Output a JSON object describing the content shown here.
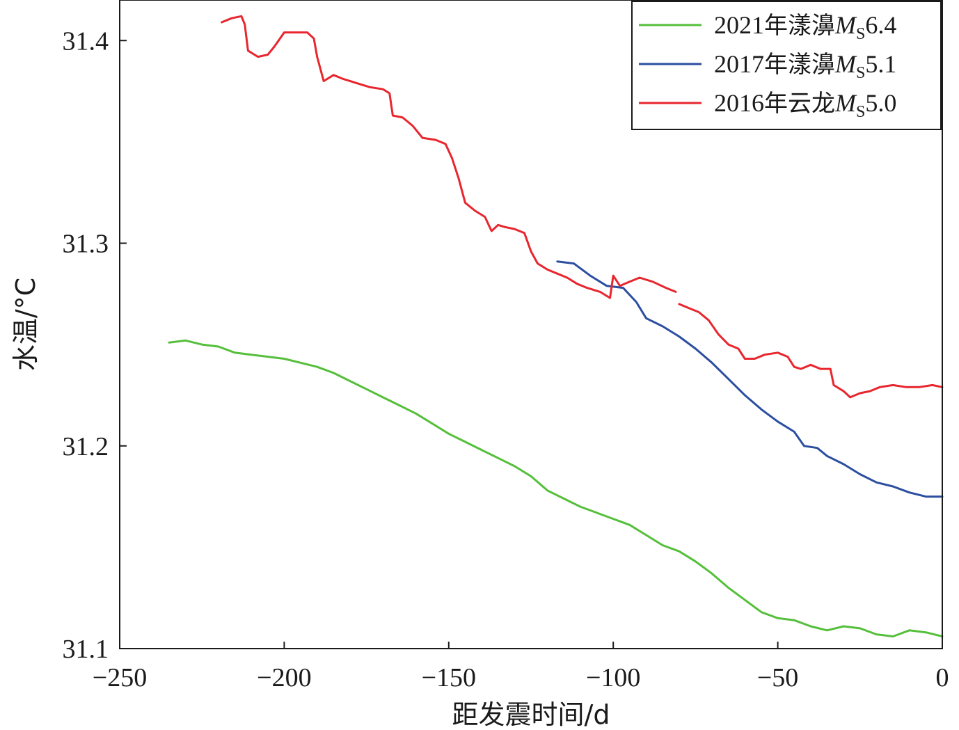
{
  "chart_data": {
    "type": "line",
    "xlabel": "距发震时间/d",
    "ylabel": "水温/°C",
    "xlim": [
      -250,
      0
    ],
    "ylim": [
      31.1,
      31.42
    ],
    "x_ticks": [
      -250,
      -200,
      -150,
      -100,
      -50,
      0
    ],
    "x_tick_labels": [
      "−250",
      "−200",
      "−150",
      "−100",
      "−50",
      "0"
    ],
    "y_ticks": [
      31.1,
      31.2,
      31.3,
      31.4
    ],
    "y_tick_labels": [
      "31.1",
      "31.2",
      "31.3",
      "31.4"
    ],
    "grid": false,
    "legend_position": "top-right",
    "series": [
      {
        "name": "2021年漾濞MS6.4",
        "legend": {
          "pre": "2021年漾濞",
          "italic": "M",
          "sub": "S",
          "post": "6.4"
        },
        "color": "#55bf3b",
        "points": [
          [
            -235,
            31.251
          ],
          [
            -230,
            31.252
          ],
          [
            -225,
            31.25
          ],
          [
            -220,
            31.249
          ],
          [
            -215,
            31.246
          ],
          [
            -210,
            31.245
          ],
          [
            -205,
            31.244
          ],
          [
            -200,
            31.243
          ],
          [
            -195,
            31.241
          ],
          [
            -190,
            31.239
          ],
          [
            -185,
            31.236
          ],
          [
            -180,
            31.232
          ],
          [
            -175,
            31.228
          ],
          [
            -170,
            31.224
          ],
          [
            -165,
            31.22
          ],
          [
            -160,
            31.216
          ],
          [
            -155,
            31.211
          ],
          [
            -150,
            31.206
          ],
          [
            -145,
            31.202
          ],
          [
            -140,
            31.198
          ],
          [
            -135,
            31.194
          ],
          [
            -130,
            31.19
          ],
          [
            -125,
            31.185
          ],
          [
            -120,
            31.178
          ],
          [
            -115,
            31.174
          ],
          [
            -110,
            31.17
          ],
          [
            -105,
            31.167
          ],
          [
            -100,
            31.164
          ],
          [
            -95,
            31.161
          ],
          [
            -90,
            31.156
          ],
          [
            -85,
            31.151
          ],
          [
            -80,
            31.148
          ],
          [
            -75,
            31.143
          ],
          [
            -70,
            31.137
          ],
          [
            -65,
            31.13
          ],
          [
            -60,
            31.124
          ],
          [
            -55,
            31.118
          ],
          [
            -50,
            31.115
          ],
          [
            -45,
            31.114
          ],
          [
            -40,
            31.111
          ],
          [
            -35,
            31.109
          ],
          [
            -30,
            31.111
          ],
          [
            -25,
            31.11
          ],
          [
            -20,
            31.107
          ],
          [
            -15,
            31.106
          ],
          [
            -10,
            31.109
          ],
          [
            -5,
            31.108
          ],
          [
            0,
            31.106
          ]
        ]
      },
      {
        "name": "2017年漾濞MS5.1",
        "legend": {
          "pre": "2017年漾濞",
          "italic": "M",
          "sub": "S",
          "post": "5.1"
        },
        "color": "#2b4ea0",
        "points": [
          [
            -117,
            31.291
          ],
          [
            -112,
            31.29
          ],
          [
            -107,
            31.284
          ],
          [
            -102,
            31.279
          ],
          [
            -97,
            31.278
          ],
          [
            -93,
            31.271
          ],
          [
            -90,
            31.263
          ],
          [
            -85,
            31.259
          ],
          [
            -80,
            31.254
          ],
          [
            -75,
            31.248
          ],
          [
            -70,
            31.241
          ],
          [
            -65,
            31.233
          ],
          [
            -60,
            31.225
          ],
          [
            -55,
            31.218
          ],
          [
            -50,
            31.212
          ],
          [
            -45,
            31.207
          ],
          [
            -42,
            31.2
          ],
          [
            -38,
            31.199
          ],
          [
            -35,
            31.195
          ],
          [
            -30,
            31.191
          ],
          [
            -25,
            31.186
          ],
          [
            -20,
            31.182
          ],
          [
            -15,
            31.18
          ],
          [
            -10,
            31.177
          ],
          [
            -5,
            31.175
          ],
          [
            0,
            31.175
          ]
        ]
      },
      {
        "name": "2016年云龙MS5.0",
        "legend": {
          "pre": "2016年云龙",
          "italic": "M",
          "sub": "S",
          "post": "5.0"
        },
        "color": "#e8262e",
        "segments": [
          [
            [
              -219,
              31.409
            ],
            [
              -216,
              31.411
            ],
            [
              -213,
              31.412
            ],
            [
              -212,
              31.408
            ],
            [
              -211,
              31.395
            ],
            [
              -208,
              31.392
            ],
            [
              -205,
              31.393
            ],
            [
              -203,
              31.397
            ],
            [
              -200,
              31.404
            ],
            [
              -196,
              31.404
            ],
            [
              -193,
              31.404
            ],
            [
              -191,
              31.401
            ],
            [
              -190,
              31.392
            ],
            [
              -188,
              31.38
            ],
            [
              -185,
              31.383
            ],
            [
              -182,
              31.381
            ],
            [
              -178,
              31.379
            ],
            [
              -174,
              31.377
            ],
            [
              -170,
              31.376
            ],
            [
              -168,
              31.374
            ],
            [
              -167,
              31.363
            ],
            [
              -164,
              31.362
            ],
            [
              -161,
              31.358
            ],
            [
              -158,
              31.352
            ],
            [
              -154,
              31.351
            ],
            [
              -151,
              31.349
            ],
            [
              -149,
              31.342
            ],
            [
              -147,
              31.332
            ],
            [
              -145,
              31.32
            ],
            [
              -142,
              31.316
            ],
            [
              -139,
              31.313
            ],
            [
              -137,
              31.306
            ],
            [
              -135,
              31.309
            ],
            [
              -133,
              31.308
            ],
            [
              -130,
              31.307
            ],
            [
              -127,
              31.305
            ],
            [
              -125,
              31.296
            ],
            [
              -123,
              31.29
            ],
            [
              -120,
              31.287
            ],
            [
              -117,
              31.285
            ],
            [
              -114,
              31.283
            ],
            [
              -111,
              31.28
            ],
            [
              -108,
              31.278
            ],
            [
              -104,
              31.276
            ],
            [
              -101,
              31.273
            ],
            [
              -100,
              31.284
            ],
            [
              -98,
              31.279
            ],
            [
              -95,
              31.281
            ],
            [
              -92,
              31.283
            ],
            [
              -88,
              31.281
            ],
            [
              -84,
              31.278
            ],
            [
              -81,
              31.276
            ]
          ],
          [
            [
              -80,
              31.27
            ],
            [
              -77,
              31.268
            ],
            [
              -74,
              31.266
            ],
            [
              -71,
              31.262
            ],
            [
              -68,
              31.255
            ],
            [
              -65,
              31.25
            ],
            [
              -62,
              31.248
            ],
            [
              -60,
              31.243
            ],
            [
              -57,
              31.243
            ],
            [
              -54,
              31.245
            ],
            [
              -50,
              31.246
            ],
            [
              -47,
              31.244
            ],
            [
              -45,
              31.239
            ],
            [
              -43,
              31.238
            ],
            [
              -40,
              31.24
            ],
            [
              -37,
              31.238
            ],
            [
              -34,
              31.238
            ],
            [
              -33,
              31.23
            ],
            [
              -30,
              31.227
            ],
            [
              -28,
              31.224
            ],
            [
              -25,
              31.226
            ],
            [
              -22,
              31.227
            ],
            [
              -19,
              31.229
            ],
            [
              -15,
              31.23
            ],
            [
              -11,
              31.229
            ],
            [
              -7,
              31.229
            ],
            [
              -3,
              31.23
            ],
            [
              0,
              31.229
            ]
          ]
        ]
      }
    ]
  }
}
